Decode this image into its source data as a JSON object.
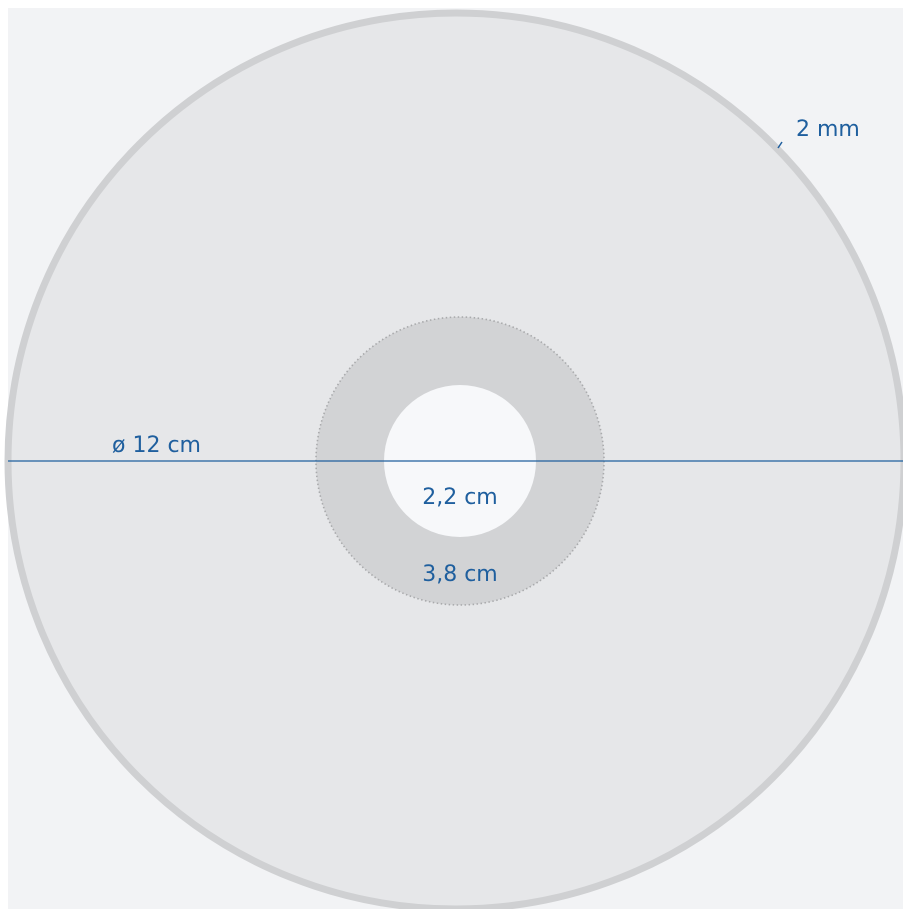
{
  "colors": {
    "page_background": "#f2f3f5",
    "disc_fill": "#e6e7e9",
    "disc_rim": "#cfd0d2",
    "hub_fill": "#d2d3d5",
    "hub_edge": "#a9aaac",
    "center_hole": "#f7f8fa",
    "measure_line": "#1f5f9e",
    "label_text": "#1f5f9e"
  },
  "labels": {
    "outer_diameter": "ø 12 cm",
    "rim_thickness": "2 mm",
    "inner_hole": "2,2 cm",
    "hub_diameter": "3,8 cm"
  }
}
